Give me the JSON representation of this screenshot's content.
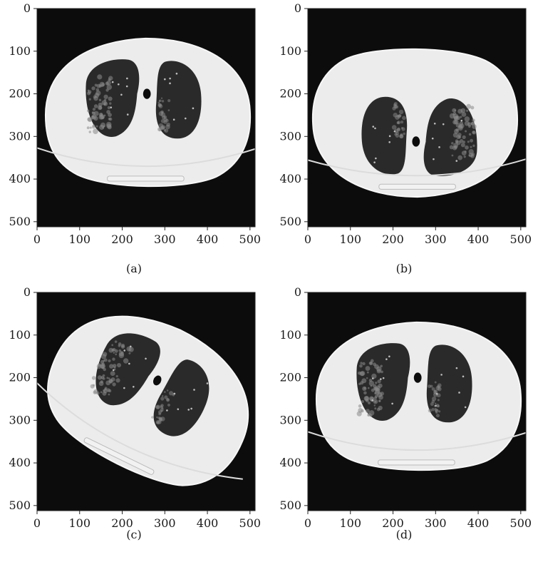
{
  "colors": {
    "background": "#0c0c0c",
    "body": "#ececec",
    "body_edge": "#f7f7f7",
    "lung": "#2a2a2a",
    "lung_mottle": "#8a8a8a",
    "device": "#f2f2f2"
  },
  "axes": {
    "x_ticks": [
      "0",
      "100",
      "200",
      "300",
      "400",
      "500"
    ],
    "y_ticks": [
      "0",
      "100",
      "200",
      "300",
      "400",
      "500"
    ]
  },
  "panels": [
    {
      "label": "(a)",
      "rotation_deg": 0,
      "device": "bottom"
    },
    {
      "label": "(b)",
      "rotation_deg": 180,
      "device": "top"
    },
    {
      "label": "(c)",
      "rotation_deg": 26,
      "device": "bottom"
    },
    {
      "label": "(d)",
      "rotation_deg": 0,
      "device": "bottom"
    }
  ]
}
